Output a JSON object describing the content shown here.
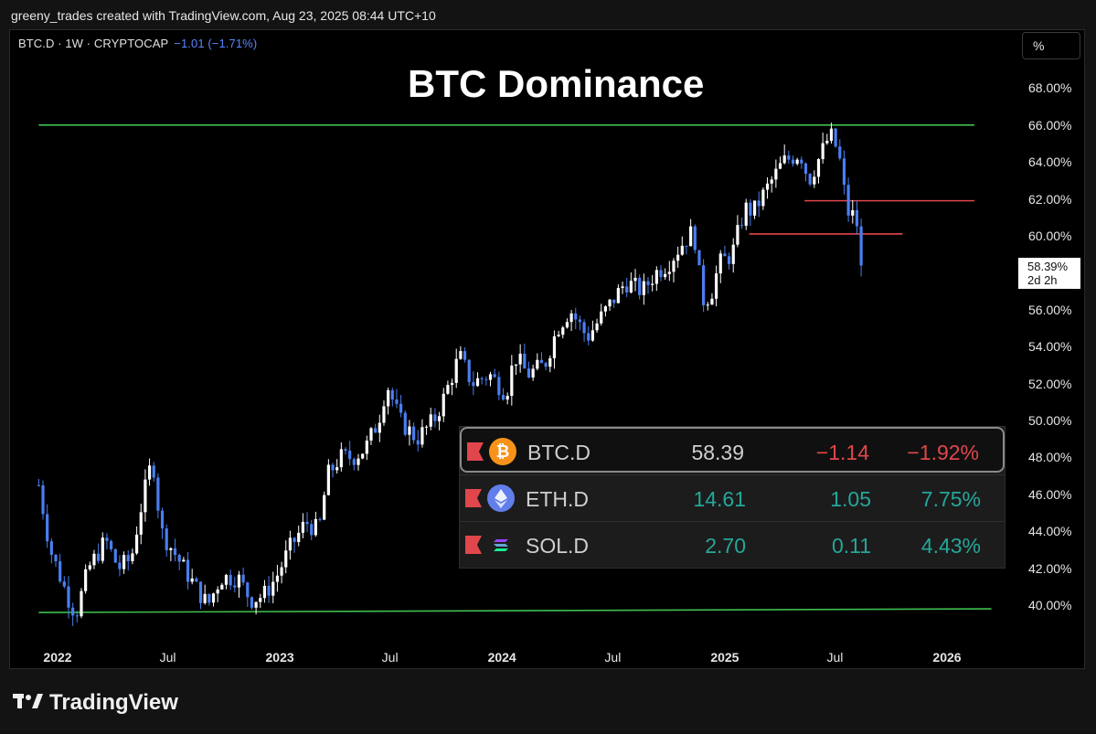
{
  "header": {
    "attribution": "greeny_trades created with TradingView.com, Aug 23, 2025 08:44 UTC+10"
  },
  "symbol": {
    "label": "BTC.D · 1W · CRYPTOCAP",
    "change": "−1.01 (−1.71%)"
  },
  "title": "BTC Dominance",
  "scale_button": "%",
  "price_tag": {
    "value": "58.39%",
    "countdown": "2d 2h"
  },
  "watchlist": [
    {
      "icon": "bitcoin-icon",
      "symbol": "BTC.D",
      "last": "58.39",
      "change": "−1.14",
      "change_pct": "−1.92%",
      "direction": "down",
      "selected": true
    },
    {
      "icon": "ethereum-icon",
      "symbol": "ETH.D",
      "last": "14.61",
      "change": "1.05",
      "change_pct": "7.75%",
      "direction": "up",
      "selected": false
    },
    {
      "icon": "solana-icon",
      "symbol": "SOL.D",
      "last": "2.70",
      "change": "0.11",
      "change_pct": "4.43%",
      "direction": "up",
      "selected": false
    }
  ],
  "brand": "TradingView",
  "colors": {
    "up": "#ffffff",
    "down": "#4a7ef0",
    "support": "#3fbf4f",
    "level": "#e0474c",
    "negative": "#e0474c",
    "positive": "#26a69a"
  },
  "chart_data": {
    "type": "candlestick",
    "title": "BTC Dominance",
    "interval": "1W",
    "y_ticks": [
      "68.00%",
      "66.00%",
      "64.00%",
      "62.00%",
      "60.00%",
      "58.00%",
      "56.00%",
      "54.00%",
      "52.00%",
      "50.00%",
      "48.00%",
      "46.00%",
      "44.00%",
      "42.00%",
      "40.00%"
    ],
    "x_ticks": [
      "2022",
      "Jul",
      "2023",
      "Jul",
      "2024",
      "Jul",
      "2025",
      "Jul",
      "2026"
    ],
    "ylim": [
      38.5,
      70
    ],
    "last_value": 58.39,
    "horizontal_lines": [
      {
        "kind": "support",
        "y_start": 66.0,
        "y_end": 66.0,
        "x_start": "2021-12-01",
        "x_end": "2026-02-15"
      },
      {
        "kind": "support",
        "y_start": 39.6,
        "y_end": 39.8,
        "x_start": "2021-12-01",
        "x_end": "2026-03-15"
      },
      {
        "kind": "level",
        "y_start": 61.9,
        "y_end": 61.9,
        "x_start": "2025-05-12",
        "x_end": "2026-02-15"
      },
      {
        "kind": "level",
        "y_start": 60.1,
        "y_end": 60.1,
        "x_start": "2025-02-10",
        "x_end": "2025-10-20"
      }
    ],
    "series": [
      {
        "name": "BTC.D",
        "anchors": [
          [
            "2021-12-01",
            46.5
          ],
          [
            "2021-12-20",
            43.0
          ],
          [
            "2022-01-17",
            40.5
          ],
          [
            "2022-01-31",
            39.5
          ],
          [
            "2022-02-21",
            42.0
          ],
          [
            "2022-03-21",
            43.5
          ],
          [
            "2022-04-11",
            42.0
          ],
          [
            "2022-05-02",
            42.5
          ],
          [
            "2022-05-16",
            45.0
          ],
          [
            "2022-06-06",
            48.0
          ],
          [
            "2022-06-20",
            44.0
          ],
          [
            "2022-07-18",
            42.5
          ],
          [
            "2022-08-15",
            41.0
          ],
          [
            "2022-09-05",
            40.0
          ],
          [
            "2022-09-26",
            41.5
          ],
          [
            "2022-10-24",
            41.5
          ],
          [
            "2022-11-14",
            40.3
          ],
          [
            "2022-12-05",
            40.5
          ],
          [
            "2022-12-26",
            41.5
          ],
          [
            "2023-01-16",
            43.0
          ],
          [
            "2023-02-13",
            44.5
          ],
          [
            "2023-03-06",
            44.0
          ],
          [
            "2023-03-20",
            47.0
          ],
          [
            "2023-04-10",
            48.0
          ],
          [
            "2023-05-01",
            48.0
          ],
          [
            "2023-05-22",
            48.5
          ],
          [
            "2023-06-12",
            50.0
          ],
          [
            "2023-06-26",
            52.0
          ],
          [
            "2023-07-17",
            50.0
          ],
          [
            "2023-08-14",
            49.0
          ],
          [
            "2023-09-11",
            50.0
          ],
          [
            "2023-09-25",
            51.0
          ],
          [
            "2023-10-23",
            53.5
          ],
          [
            "2023-11-13",
            52.0
          ],
          [
            "2023-12-11",
            52.5
          ],
          [
            "2024-01-08",
            51.5
          ],
          [
            "2024-01-22",
            53.5
          ],
          [
            "2024-02-12",
            52.5
          ],
          [
            "2024-03-11",
            53.0
          ],
          [
            "2024-04-01",
            55.0
          ],
          [
            "2024-04-22",
            56.0
          ],
          [
            "2024-05-20",
            54.5
          ],
          [
            "2024-06-10",
            55.5
          ],
          [
            "2024-07-01",
            56.5
          ],
          [
            "2024-07-22",
            57.5
          ],
          [
            "2024-08-19",
            57.0
          ],
          [
            "2024-09-09",
            58.0
          ],
          [
            "2024-09-30",
            58.5
          ],
          [
            "2024-10-21",
            59.5
          ],
          [
            "2024-11-11",
            60.3
          ],
          [
            "2024-11-25",
            56.5
          ],
          [
            "2024-12-09",
            56.8
          ],
          [
            "2024-12-23",
            58.5
          ],
          [
            "2025-01-13",
            59.0
          ],
          [
            "2025-02-03",
            61.5
          ],
          [
            "2025-02-17",
            61.3
          ],
          [
            "2025-03-10",
            62.5
          ],
          [
            "2025-04-07",
            64.0
          ],
          [
            "2025-05-05",
            64.5
          ],
          [
            "2025-05-19",
            63.0
          ],
          [
            "2025-06-09",
            64.5
          ],
          [
            "2025-06-23",
            65.5
          ],
          [
            "2025-07-07",
            64.5
          ],
          [
            "2025-07-21",
            61.3
          ],
          [
            "2025-08-04",
            61.0
          ],
          [
            "2025-08-18",
            58.39
          ]
        ]
      }
    ]
  }
}
